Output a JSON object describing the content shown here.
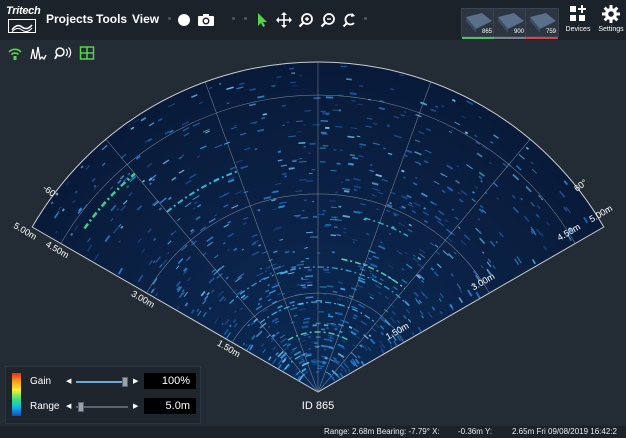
{
  "logo": {
    "text": "Tritech"
  },
  "menu": {
    "projects": "Projects",
    "tools": "Tools",
    "view": "View"
  },
  "toolbar": {
    "icons": [
      "record-icon",
      "camera-icon",
      "select-pointer-icon",
      "pan-move-icon",
      "zoom-in-icon",
      "zoom-out-icon",
      "reset-view-icon"
    ],
    "pointer_color": "#57d34a"
  },
  "devices": [
    {
      "label": "865",
      "bar_color": "#3ecb5a"
    },
    {
      "label": "900",
      "bar_color": "#7a8089"
    },
    {
      "label": "759",
      "bar_color": "#e24040"
    }
  ],
  "right_buttons": {
    "devices": "Devices",
    "settings": "Settings"
  },
  "subtoolbar": {
    "icons": [
      "wifi-icon",
      "signal-icon",
      "ping-icon",
      "grid-icon"
    ]
  },
  "sonar": {
    "device_id": "ID 865",
    "range_labels": [
      "1.50m",
      "3.00m",
      "4.50m",
      "5.00m"
    ],
    "angle_labels": [
      "-60°",
      "60°"
    ]
  },
  "controls": {
    "gain_label": "Gain",
    "gain_value": "100%",
    "gain_level": 0.92,
    "range_label": "Range",
    "range_value": "5.0m",
    "range_level": 0.08
  },
  "status": {
    "range_bearing": "Range: 2.68m Bearing: -7.79° X:",
    "x_val": "-0.36m Y:",
    "y_and_time": "2.65m Fri 09/08/2019 16:42:2"
  },
  "colors": {
    "accent_green": "#57d34a",
    "panel_bg": "#1e252d",
    "toolbar_bg": "#1b2229"
  }
}
